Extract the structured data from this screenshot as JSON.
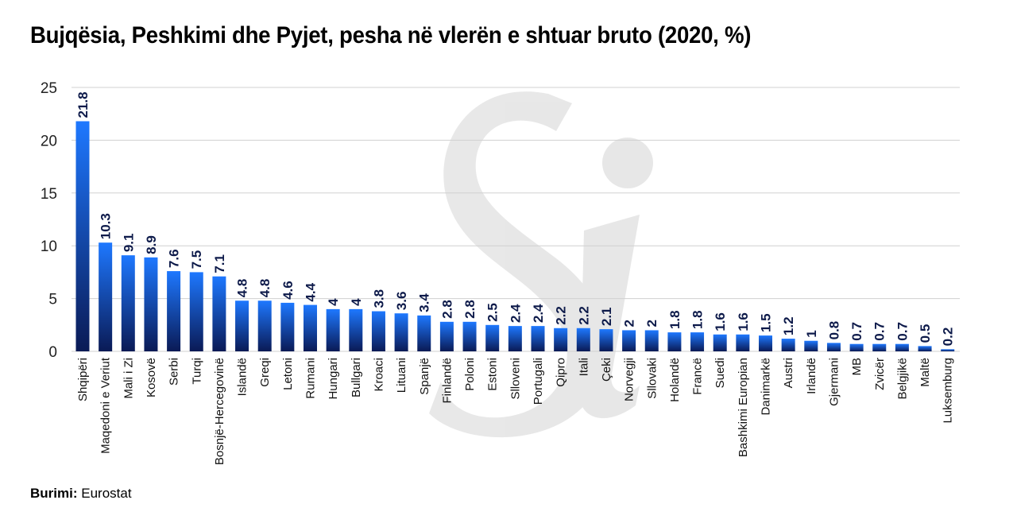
{
  "title": "Bujqësia, Peshkimi dhe Pyjet, pesha në vlerën e shtuar bruto (2020, %)",
  "source_label": "Burimi:",
  "source_value": "Eurostat",
  "colors": {
    "bar_top": "#1e78ff",
    "bar_bottom": "#0a1a55",
    "grid": "#d0d0d0",
    "label": "#0d1a4a"
  },
  "chart_data": {
    "type": "bar",
    "title": "Bujqësia, Peshkimi dhe Pyjet, pesha në vlerën e shtuar bruto (2020, %)",
    "xlabel": "",
    "ylabel": "",
    "ylim": [
      0,
      25
    ],
    "yticks": [
      0,
      5,
      10,
      15,
      20,
      25
    ],
    "grid": true,
    "categories": [
      "Shqipëri",
      "Maqedoni e Veriut",
      "Mali i Zi",
      "Kosovë",
      "Serbi",
      "Turqi",
      "Bosnjë-Hercegovinë",
      "Islandë",
      "Greqi",
      "Letoni",
      "Rumani",
      "Hungari",
      "Bullgari",
      "Kroaci",
      "Lituani",
      "Spanjë",
      "Finlandë",
      "Poloni",
      "Estoni",
      "Slloveni",
      "Portugali",
      "Qipro",
      "Itali",
      "Çeki",
      "Norvegji",
      "Sllovaki",
      "Holandë",
      "Francë",
      "Suedi",
      "Bashkimi Europian",
      "Danimarkë",
      "Austri",
      "Irlandë",
      "Gjermani",
      "MB",
      "Zvicër",
      "Belgjikë",
      "Maltë",
      "Luksemburg"
    ],
    "values": [
      21.8,
      10.3,
      9.1,
      8.9,
      7.6,
      7.5,
      7.1,
      4.8,
      4.8,
      4.6,
      4.4,
      4,
      4,
      3.8,
      3.6,
      3.4,
      2.8,
      2.8,
      2.5,
      2.4,
      2.4,
      2.2,
      2.2,
      2.1,
      2,
      2,
      1.8,
      1.8,
      1.6,
      1.6,
      1.5,
      1.2,
      1,
      0.8,
      0.7,
      0.7,
      0.7,
      0.5,
      0.2
    ],
    "value_labels": [
      "21.8",
      "10.3",
      "9.1",
      "8.9",
      "7.6",
      "7.5",
      "7.1",
      "4.8",
      "4.8",
      "4.6",
      "4.4",
      "4",
      "4",
      "3.8",
      "3.6",
      "3.4",
      "2.8",
      "2.8",
      "2.5",
      "2.4",
      "2.4",
      "2.2",
      "2.2",
      "2.1",
      "2",
      "2",
      "1.8",
      "1.8",
      "1.6",
      "1.6",
      "1.5",
      "1.2",
      "1",
      "0.8",
      "0.7",
      "0.7",
      "0.7",
      "0.5",
      "0.2"
    ]
  }
}
